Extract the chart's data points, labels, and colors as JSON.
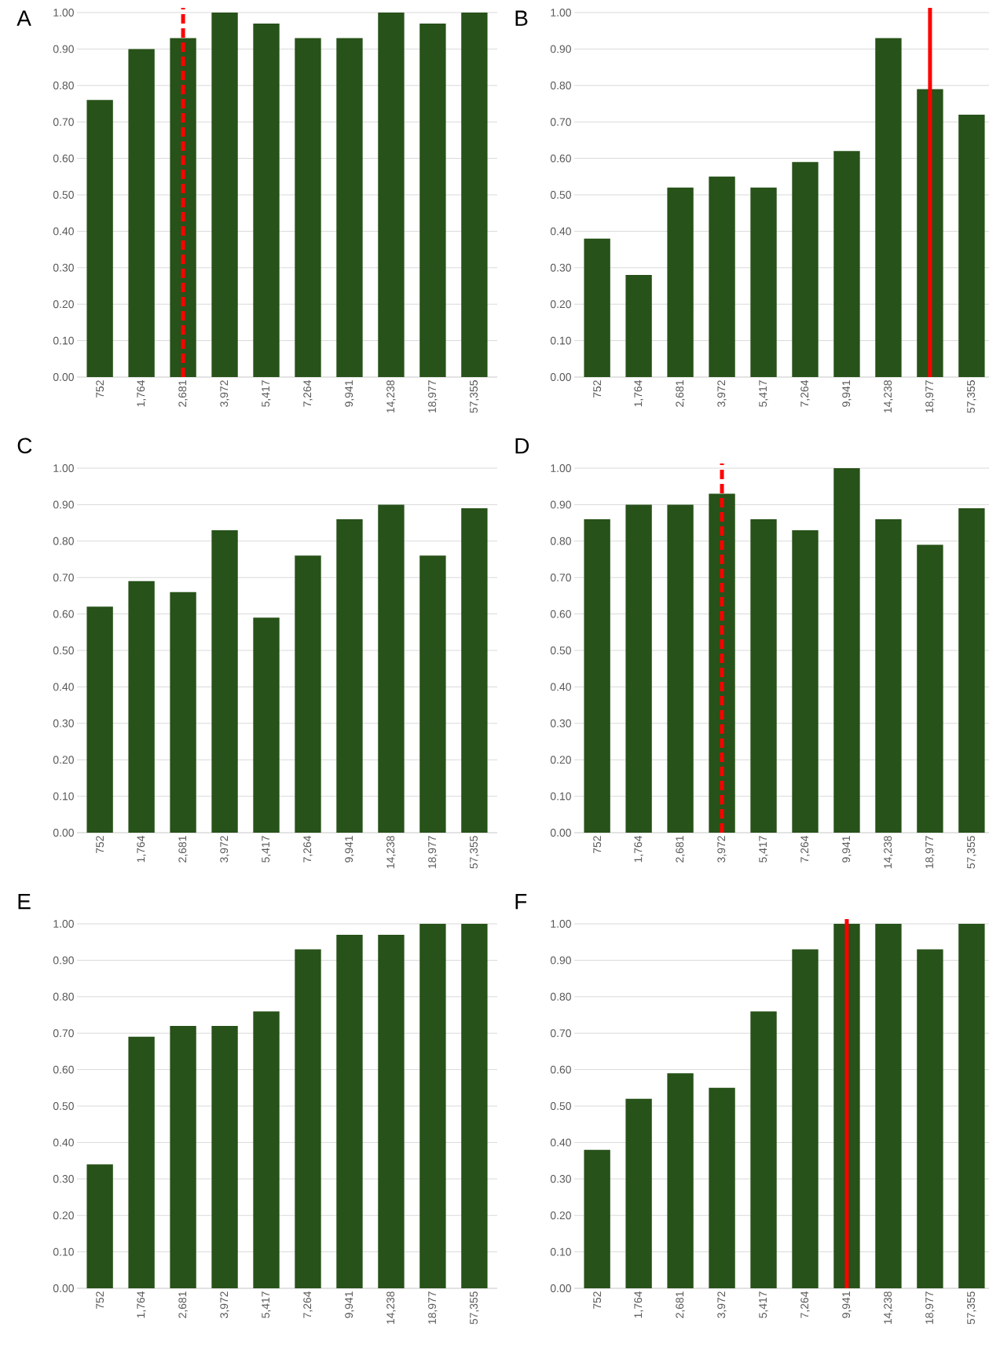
{
  "chart_data": [
    {
      "type": "bar",
      "title": "A",
      "categories": [
        "752",
        "1,764",
        "2,681",
        "3,972",
        "5,417",
        "7,264",
        "9,941",
        "14,238",
        "18,977",
        "57,355"
      ],
      "values": [
        0.76,
        0.9,
        0.93,
        1.0,
        0.97,
        0.93,
        0.93,
        1.0,
        0.97,
        1.0
      ],
      "color": "#275219",
      "ylim": [
        0,
        1
      ],
      "yticks": [
        {
          "value": 0,
          "label": "0.00"
        },
        {
          "value": 0.1,
          "label": "0.10"
        },
        {
          "value": 0.2,
          "label": "0.20"
        },
        {
          "value": 0.3,
          "label": "0.30"
        },
        {
          "value": 0.4,
          "label": "0.40"
        },
        {
          "value": 0.5,
          "label": "0.50"
        },
        {
          "value": 0.6,
          "label": "0.60"
        },
        {
          "value": 0.7,
          "label": "0.70"
        },
        {
          "value": 0.8,
          "label": "0.80"
        },
        {
          "value": 0.9,
          "label": "0.90"
        },
        {
          "value": 1,
          "label": "1.00"
        }
      ],
      "grid": "y",
      "ref_lines": [
        {
          "axis": "x",
          "value": "2,681",
          "color": "#ff0000",
          "line_style": "dashed"
        }
      ]
    },
    {
      "type": "bar",
      "title": "B",
      "categories": [
        "752",
        "1,764",
        "2,681",
        "3,972",
        "5,417",
        "7,264",
        "9,941",
        "14,238",
        "18,977",
        "57,355"
      ],
      "values": [
        0.38,
        0.28,
        0.52,
        0.55,
        0.52,
        0.59,
        0.62,
        0.93,
        0.79,
        0.72
      ],
      "color": "#275219",
      "ylim": [
        0,
        1
      ],
      "yticks": [
        {
          "value": 0,
          "label": "0.00"
        },
        {
          "value": 0.1,
          "label": "0.10"
        },
        {
          "value": 0.2,
          "label": "0.20"
        },
        {
          "value": 0.3,
          "label": "0.30"
        },
        {
          "value": 0.4,
          "label": "0.40"
        },
        {
          "value": 0.5,
          "label": "0.50"
        },
        {
          "value": 0.6,
          "label": "0.60"
        },
        {
          "value": 0.7,
          "label": "0.70"
        },
        {
          "value": 0.8,
          "label": "0.80"
        },
        {
          "value": 0.9,
          "label": "0.90"
        },
        {
          "value": 1,
          "label": "1.00"
        }
      ],
      "grid": "y",
      "ref_lines": [
        {
          "axis": "x",
          "value": "18,977",
          "color": "#ff0000",
          "line_style": "solid"
        }
      ]
    },
    {
      "type": "bar",
      "title": "C",
      "categories": [
        "752",
        "1,764",
        "2,681",
        "3,972",
        "5,417",
        "7,264",
        "9,941",
        "14,238",
        "18,977",
        "57,355"
      ],
      "values": [
        0.62,
        0.69,
        0.66,
        0.83,
        0.59,
        0.76,
        0.86,
        0.9,
        0.76,
        0.89
      ],
      "color": "#275219",
      "ylim": [
        0,
        1
      ],
      "yticks": [
        {
          "value": 0,
          "label": "0.00"
        },
        {
          "value": 0.1,
          "label": "0.10"
        },
        {
          "value": 0.2,
          "label": "0.20"
        },
        {
          "value": 0.3,
          "label": "0.30"
        },
        {
          "value": 0.4,
          "label": "0.40"
        },
        {
          "value": 0.5,
          "label": "0.50"
        },
        {
          "value": 0.6,
          "label": "0.60"
        },
        {
          "value": 0.7,
          "label": "0.70"
        },
        {
          "value": 0.8,
          "label": "0.80"
        },
        {
          "value": 0.9,
          "label": "0.90"
        },
        {
          "value": 1,
          "label": "1.00"
        }
      ],
      "grid": "y"
    },
    {
      "type": "bar",
      "title": "D",
      "categories": [
        "752",
        "1,764",
        "2,681",
        "3,972",
        "5,417",
        "7,264",
        "9,941",
        "14,238",
        "18,977",
        "57,355"
      ],
      "values": [
        0.86,
        0.9,
        0.9,
        0.93,
        0.86,
        0.83,
        1.0,
        0.86,
        0.79,
        0.89
      ],
      "color": "#275219",
      "ylim": [
        0,
        1
      ],
      "yticks": [
        {
          "value": 0,
          "label": "0.00"
        },
        {
          "value": 0.1,
          "label": "0.10"
        },
        {
          "value": 0.2,
          "label": "0.20"
        },
        {
          "value": 0.3,
          "label": "0.30"
        },
        {
          "value": 0.4,
          "label": "0.40"
        },
        {
          "value": 0.5,
          "label": "0.50"
        },
        {
          "value": 0.6,
          "label": "0.60"
        },
        {
          "value": 0.7,
          "label": "0.70"
        },
        {
          "value": 0.8,
          "label": "0.80"
        },
        {
          "value": 0.9,
          "label": "0.90"
        },
        {
          "value": 1,
          "label": "1.00"
        }
      ],
      "grid": "y",
      "ref_lines": [
        {
          "axis": "x",
          "value": "3,972",
          "color": "#ff0000",
          "line_style": "dashed"
        }
      ]
    },
    {
      "type": "bar",
      "title": "E",
      "categories": [
        "752",
        "1,764",
        "2,681",
        "3,972",
        "5,417",
        "7,264",
        "9,941",
        "14,238",
        "18,977",
        "57,355"
      ],
      "values": [
        0.34,
        0.69,
        0.72,
        0.72,
        0.76,
        0.93,
        0.97,
        0.97,
        1.0,
        1.0
      ],
      "color": "#275219",
      "ylim": [
        0,
        1
      ],
      "yticks": [
        {
          "value": 0,
          "label": "0.00"
        },
        {
          "value": 0.1,
          "label": "0.10"
        },
        {
          "value": 0.2,
          "label": "0.20"
        },
        {
          "value": 0.3,
          "label": "0.30"
        },
        {
          "value": 0.4,
          "label": "0.40"
        },
        {
          "value": 0.5,
          "label": "0.50"
        },
        {
          "value": 0.6,
          "label": "0.60"
        },
        {
          "value": 0.7,
          "label": "0.70"
        },
        {
          "value": 0.8,
          "label": "0.80"
        },
        {
          "value": 0.9,
          "label": "0.90"
        },
        {
          "value": 1,
          "label": "1.00"
        }
      ],
      "grid": "y"
    },
    {
      "type": "bar",
      "title": "F",
      "categories": [
        "752",
        "1,764",
        "2,681",
        "3,972",
        "5,417",
        "7,264",
        "9,941",
        "14,238",
        "18,977",
        "57,355"
      ],
      "values": [
        0.38,
        0.52,
        0.59,
        0.55,
        0.76,
        0.93,
        1.0,
        1.0,
        0.93,
        1.0
      ],
      "color": "#275219",
      "ylim": [
        0,
        1
      ],
      "yticks": [
        {
          "value": 0,
          "label": "0.00"
        },
        {
          "value": 0.1,
          "label": "0.10"
        },
        {
          "value": 0.2,
          "label": "0.20"
        },
        {
          "value": 0.3,
          "label": "0.30"
        },
        {
          "value": 0.4,
          "label": "0.40"
        },
        {
          "value": 0.5,
          "label": "0.50"
        },
        {
          "value": 0.6,
          "label": "0.60"
        },
        {
          "value": 0.7,
          "label": "0.70"
        },
        {
          "value": 0.8,
          "label": "0.80"
        },
        {
          "value": 0.9,
          "label": "0.90"
        },
        {
          "value": 1,
          "label": "1.00"
        }
      ],
      "grid": "y",
      "ref_lines": [
        {
          "axis": "x",
          "value": "9,941",
          "color": "#ff0000",
          "line_style": "solid"
        }
      ]
    }
  ]
}
